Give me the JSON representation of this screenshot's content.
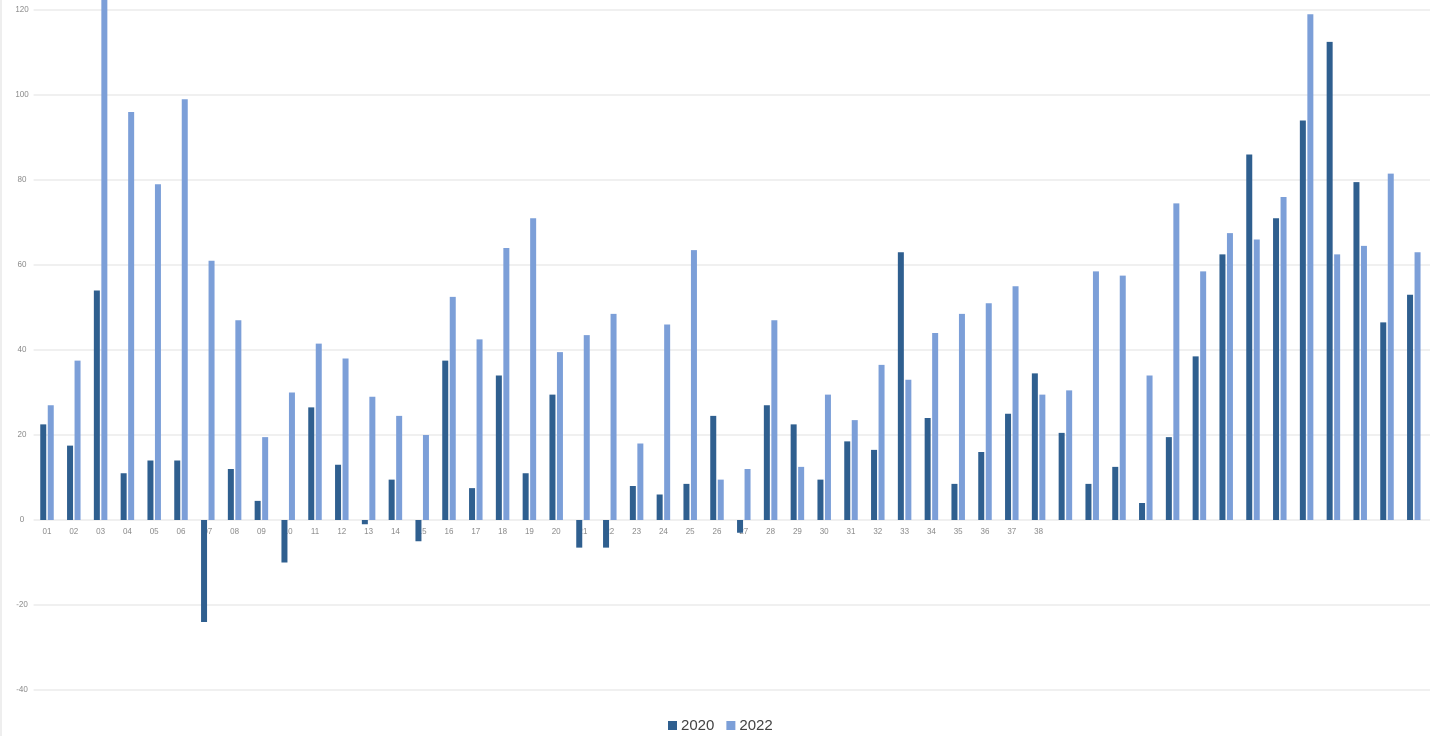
{
  "chart_data": {
    "type": "bar",
    "categories": [
      "01",
      "02",
      "03",
      "04",
      "05",
      "06",
      "07",
      "08",
      "09",
      "10",
      "11",
      "12",
      "13",
      "14",
      "15",
      "16",
      "17",
      "18",
      "19",
      "20",
      "21",
      "22",
      "23",
      "24",
      "25",
      "26",
      "27",
      "28",
      "29",
      "30",
      "31",
      "32",
      "33",
      "34",
      "35",
      "36",
      "37",
      "38",
      null,
      null,
      null,
      null,
      null,
      null,
      null,
      null,
      null,
      null,
      null,
      null,
      null,
      null
    ],
    "series": [
      {
        "name": "2020",
        "color": "#2f5f8f",
        "values": [
          22.5,
          17.5,
          54,
          11,
          14,
          14,
          -24,
          12,
          4.5,
          -10,
          26.5,
          13,
          -1,
          9.5,
          -5,
          37.5,
          7.5,
          34,
          11,
          29.5,
          -6.5,
          -6.5,
          8,
          6,
          8.5,
          24.5,
          -3,
          27,
          22.5,
          9.5,
          18.5,
          16.5,
          63,
          24,
          8.5,
          16,
          25,
          34.5,
          20.5,
          8.5,
          12.5,
          4,
          19.5,
          38.5,
          62.5,
          86,
          71,
          94,
          112.5,
          79.5,
          46.5,
          53
        ]
      },
      {
        "name": "2022",
        "color": "#7c9fd8",
        "values": [
          27,
          37.5,
          124,
          96,
          79,
          99,
          61,
          47,
          19.5,
          30,
          41.5,
          38,
          29,
          24.5,
          20,
          52.5,
          42.5,
          64,
          71,
          39.5,
          43.5,
          48.5,
          18,
          46,
          63.5,
          9.5,
          12,
          47,
          12.5,
          29.5,
          23.5,
          36.5,
          33,
          44,
          48.5,
          51,
          55,
          29.5,
          30.5,
          58.5,
          57.5,
          34,
          74.5,
          58.5,
          67.5,
          66,
          76,
          119,
          62.5,
          64.5,
          81.5,
          63
        ]
      }
    ],
    "ylim": [
      -40,
      120
    ],
    "yticks": [
      -40,
      -20,
      0,
      20,
      40,
      60,
      80,
      100,
      120
    ],
    "grid": true,
    "legend": "bottom"
  }
}
